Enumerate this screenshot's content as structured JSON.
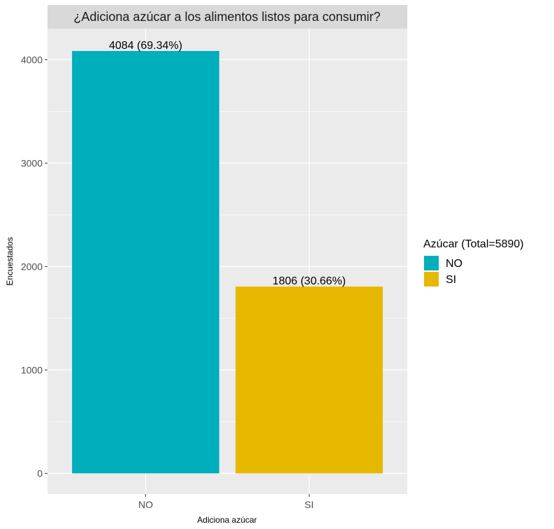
{
  "chart_data": {
    "type": "bar",
    "title": "¿Adiciona azúcar a los alimentos listos para consumir?",
    "xlabel": "Adiciona azúcar",
    "ylabel": "Encuestados",
    "categories": [
      "NO",
      "SI"
    ],
    "values": [
      4084,
      1806
    ],
    "data_labels": [
      "4084 (69.34%)",
      "1806 (30.66%)"
    ],
    "colors": [
      "#00AFBB",
      "#E7B800"
    ],
    "ylim": [
      -200,
      4300
    ],
    "yticks": [
      0,
      1000,
      2000,
      3000,
      4000
    ],
    "grid": true,
    "legend": {
      "title": "Azúcar (Total=5890)",
      "placement": "right",
      "entries": [
        "NO",
        "SI"
      ]
    }
  }
}
